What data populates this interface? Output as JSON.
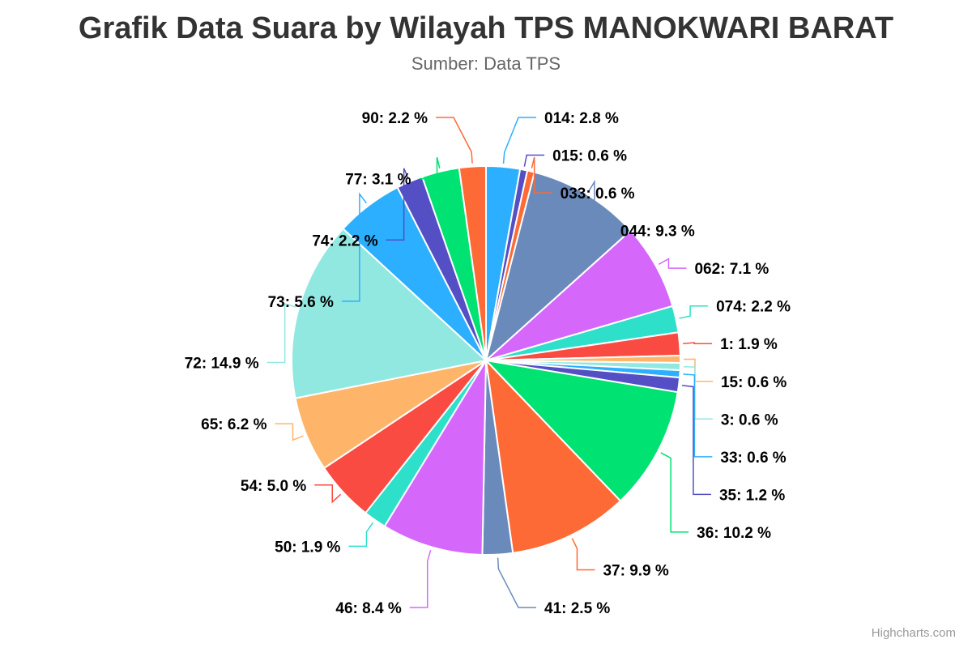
{
  "chart_data": {
    "type": "pie",
    "title": "Grafik Data Suara by Wilayah TPS MANOKWARI BARAT",
    "subtitle": "Sumber: Data TPS",
    "credits": "Highcharts.com",
    "slices": [
      {
        "name": "014",
        "value": 2.8,
        "label": "014: 2.8 %",
        "color": "#2caffe"
      },
      {
        "name": "015",
        "value": 0.6,
        "label": "015: 0.6 %",
        "color": "#544fc5"
      },
      {
        "name": "033",
        "value": 0.6,
        "label": "033: 0.6 %",
        "color": "#fe6a35"
      },
      {
        "name": "044",
        "value": 9.3,
        "label": "044: 9.3 %",
        "color": "#6b8abc"
      },
      {
        "name": "062",
        "value": 7.1,
        "label": "062: 7.1 %",
        "color": "#d568fb"
      },
      {
        "name": "074",
        "value": 2.2,
        "label": "074: 2.2 %",
        "color": "#2ee0ca"
      },
      {
        "name": "1",
        "value": 1.9,
        "label": "1: 1.9 %",
        "color": "#fa4b42"
      },
      {
        "name": "15",
        "value": 0.6,
        "label": "15: 0.6 %",
        "color": "#feb56a"
      },
      {
        "name": "3",
        "value": 0.6,
        "label": "3: 0.6 %",
        "color": "#91e8e1"
      },
      {
        "name": "33",
        "value": 0.6,
        "label": "33: 0.6 %",
        "color": "#2caffe"
      },
      {
        "name": "35",
        "value": 1.2,
        "label": "35: 1.2 %",
        "color": "#544fc5"
      },
      {
        "name": "36",
        "value": 10.2,
        "label": "36: 10.2 %",
        "color": "#00e272"
      },
      {
        "name": "37",
        "value": 9.9,
        "label": "37: 9.9 %",
        "color": "#fe6a35"
      },
      {
        "name": "41",
        "value": 2.5,
        "label": "41: 2.5 %",
        "color": "#6b8abc"
      },
      {
        "name": "46",
        "value": 8.4,
        "label": "46: 8.4 %",
        "color": "#d568fb"
      },
      {
        "name": "50",
        "value": 1.9,
        "label": "50: 1.9 %",
        "color": "#2ee0ca"
      },
      {
        "name": "54",
        "value": 5.0,
        "label": "54: 5.0 %",
        "color": "#fa4b42"
      },
      {
        "name": "65",
        "value": 6.2,
        "label": "65: 6.2 %",
        "color": "#feb56a"
      },
      {
        "name": "72",
        "value": 14.9,
        "label": "72: 14.9 %",
        "color": "#91e8e1"
      },
      {
        "name": "73",
        "value": 5.6,
        "label": "73: 5.6 %",
        "color": "#2caffe"
      },
      {
        "name": "74",
        "value": 2.2,
        "label": "74: 2.2 %",
        "color": "#544fc5"
      },
      {
        "name": "77",
        "value": 3.1,
        "label": "77: 3.1 %",
        "color": "#00e272"
      },
      {
        "name": "90",
        "value": 2.2,
        "label": "90: 2.2 %",
        "color": "#fe6a35"
      }
    ]
  }
}
